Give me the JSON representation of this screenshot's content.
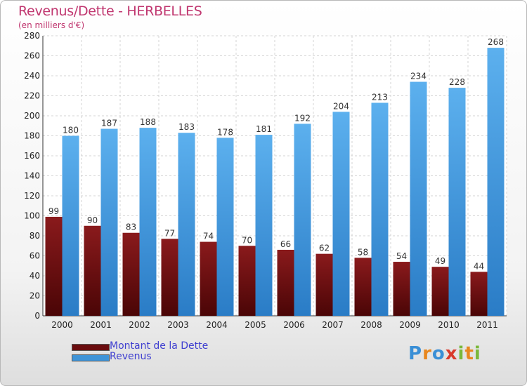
{
  "title": "Revenus/Dette - HERBELLES",
  "subtitle": "(en milliers d'€)",
  "logo_text": "Proxiti",
  "colors": {
    "dette": "#7a1214",
    "revenus": "#3f94d8",
    "title": "#c0366f",
    "legend_text": "#4040d0"
  },
  "chart_data": {
    "type": "bar",
    "title": "Revenus/Dette - HERBELLES",
    "subtitle": "(en milliers d'€)",
    "categories": [
      "2000",
      "2001",
      "2002",
      "2003",
      "2004",
      "2005",
      "2006",
      "2007",
      "2008",
      "2009",
      "2010",
      "2011"
    ],
    "series": [
      {
        "name": "Montant de la Dette",
        "values": [
          99,
          90,
          83,
          77,
          74,
          70,
          66,
          62,
          58,
          54,
          49,
          44
        ]
      },
      {
        "name": "Revenus",
        "values": [
          180,
          187,
          188,
          183,
          178,
          181,
          192,
          204,
          213,
          234,
          228,
          268
        ]
      }
    ],
    "ylim": [
      0,
      280
    ],
    "yticks": [
      0,
      20,
      40,
      60,
      80,
      100,
      120,
      140,
      160,
      180,
      200,
      220,
      240,
      260,
      280
    ],
    "grid": true,
    "legend": "bottom-left"
  }
}
